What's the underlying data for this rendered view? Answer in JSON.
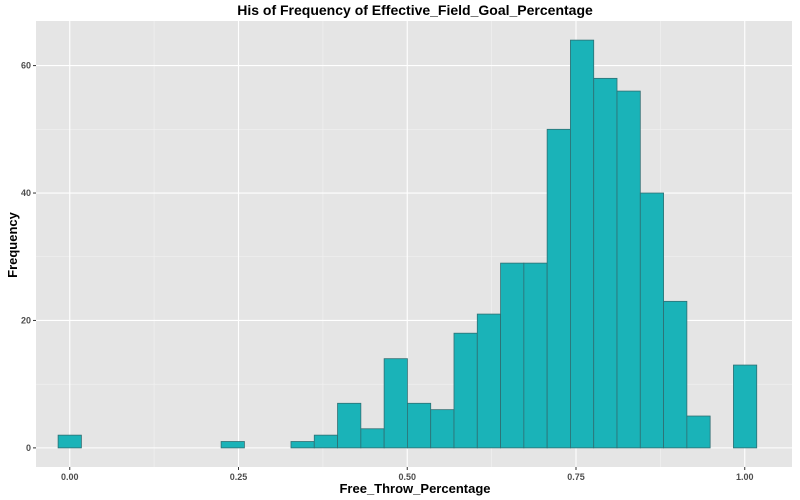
{
  "chart_data": {
    "type": "histogram",
    "title": "His of Frequency of Effective_Field_Goal_Percentage",
    "xlabel": "Free_Throw_Percentage",
    "ylabel": "Frequency",
    "bin_width": 0.0345,
    "bin_centers": [
      0.0,
      0.0345,
      0.069,
      0.1035,
      0.138,
      0.1725,
      0.207,
      0.2415,
      0.276,
      0.3105,
      0.345,
      0.3795,
      0.414,
      0.4485,
      0.483,
      0.5175,
      0.552,
      0.5865,
      0.621,
      0.6555,
      0.69,
      0.7245,
      0.759,
      0.7935,
      0.828,
      0.8625,
      0.897,
      0.9315,
      0.966,
      1.0005
    ],
    "values": [
      2,
      0,
      0,
      0,
      0,
      0,
      0,
      1,
      0,
      0,
      1,
      2,
      7,
      3,
      14,
      7,
      6,
      18,
      21,
      29,
      29,
      50,
      64,
      58,
      56,
      40,
      23,
      5,
      0,
      13
    ],
    "xlim": [
      -0.05,
      1.07
    ],
    "ylim": [
      -3,
      67
    ],
    "x_ticks": [
      0.0,
      0.25,
      0.5,
      0.75,
      1.0
    ],
    "x_tick_labels": [
      "0.00",
      "0.25",
      "0.50",
      "0.75",
      "1.00"
    ],
    "y_ticks": [
      0,
      20,
      40,
      60
    ],
    "y_tick_labels": [
      "0",
      "20",
      "40",
      "60"
    ],
    "grid": true,
    "colors": {
      "bar_fill": "#1ab3b8",
      "bar_outline": "#2f6f73",
      "panel": "#e5e5e5",
      "grid": "#ffffff"
    }
  }
}
